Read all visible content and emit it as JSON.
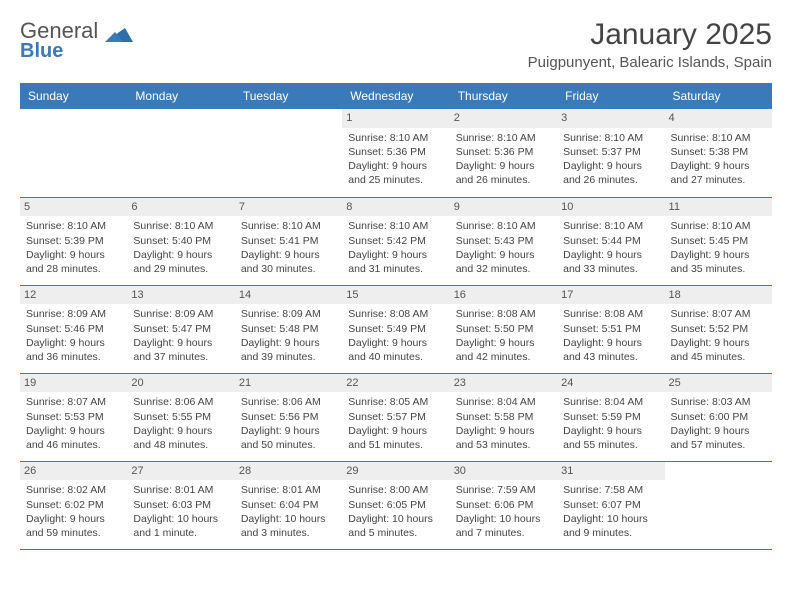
{
  "logo": {
    "text1": "General",
    "text2": "Blue",
    "triangle_color": "#2e6fa8"
  },
  "header": {
    "month_title": "January 2025",
    "location": "Puigpunyent, Balearic Islands, Spain"
  },
  "colors": {
    "header_bg": "#3a7ab8",
    "text": "#444444",
    "daynum_bg": "#eeeeee",
    "border": "#3a7ab8"
  },
  "days_of_week": [
    "Sunday",
    "Monday",
    "Tuesday",
    "Wednesday",
    "Thursday",
    "Friday",
    "Saturday"
  ],
  "weeks": [
    [
      null,
      null,
      null,
      {
        "n": "1",
        "sr": "8:10 AM",
        "ss": "5:36 PM",
        "dl": "9 hours and 25 minutes."
      },
      {
        "n": "2",
        "sr": "8:10 AM",
        "ss": "5:36 PM",
        "dl": "9 hours and 26 minutes."
      },
      {
        "n": "3",
        "sr": "8:10 AM",
        "ss": "5:37 PM",
        "dl": "9 hours and 26 minutes."
      },
      {
        "n": "4",
        "sr": "8:10 AM",
        "ss": "5:38 PM",
        "dl": "9 hours and 27 minutes."
      }
    ],
    [
      {
        "n": "5",
        "sr": "8:10 AM",
        "ss": "5:39 PM",
        "dl": "9 hours and 28 minutes."
      },
      {
        "n": "6",
        "sr": "8:10 AM",
        "ss": "5:40 PM",
        "dl": "9 hours and 29 minutes."
      },
      {
        "n": "7",
        "sr": "8:10 AM",
        "ss": "5:41 PM",
        "dl": "9 hours and 30 minutes."
      },
      {
        "n": "8",
        "sr": "8:10 AM",
        "ss": "5:42 PM",
        "dl": "9 hours and 31 minutes."
      },
      {
        "n": "9",
        "sr": "8:10 AM",
        "ss": "5:43 PM",
        "dl": "9 hours and 32 minutes."
      },
      {
        "n": "10",
        "sr": "8:10 AM",
        "ss": "5:44 PM",
        "dl": "9 hours and 33 minutes."
      },
      {
        "n": "11",
        "sr": "8:10 AM",
        "ss": "5:45 PM",
        "dl": "9 hours and 35 minutes."
      }
    ],
    [
      {
        "n": "12",
        "sr": "8:09 AM",
        "ss": "5:46 PM",
        "dl": "9 hours and 36 minutes."
      },
      {
        "n": "13",
        "sr": "8:09 AM",
        "ss": "5:47 PM",
        "dl": "9 hours and 37 minutes."
      },
      {
        "n": "14",
        "sr": "8:09 AM",
        "ss": "5:48 PM",
        "dl": "9 hours and 39 minutes."
      },
      {
        "n": "15",
        "sr": "8:08 AM",
        "ss": "5:49 PM",
        "dl": "9 hours and 40 minutes."
      },
      {
        "n": "16",
        "sr": "8:08 AM",
        "ss": "5:50 PM",
        "dl": "9 hours and 42 minutes."
      },
      {
        "n": "17",
        "sr": "8:08 AM",
        "ss": "5:51 PM",
        "dl": "9 hours and 43 minutes."
      },
      {
        "n": "18",
        "sr": "8:07 AM",
        "ss": "5:52 PM",
        "dl": "9 hours and 45 minutes."
      }
    ],
    [
      {
        "n": "19",
        "sr": "8:07 AM",
        "ss": "5:53 PM",
        "dl": "9 hours and 46 minutes."
      },
      {
        "n": "20",
        "sr": "8:06 AM",
        "ss": "5:55 PM",
        "dl": "9 hours and 48 minutes."
      },
      {
        "n": "21",
        "sr": "8:06 AM",
        "ss": "5:56 PM",
        "dl": "9 hours and 50 minutes."
      },
      {
        "n": "22",
        "sr": "8:05 AM",
        "ss": "5:57 PM",
        "dl": "9 hours and 51 minutes."
      },
      {
        "n": "23",
        "sr": "8:04 AM",
        "ss": "5:58 PM",
        "dl": "9 hours and 53 minutes."
      },
      {
        "n": "24",
        "sr": "8:04 AM",
        "ss": "5:59 PM",
        "dl": "9 hours and 55 minutes."
      },
      {
        "n": "25",
        "sr": "8:03 AM",
        "ss": "6:00 PM",
        "dl": "9 hours and 57 minutes."
      }
    ],
    [
      {
        "n": "26",
        "sr": "8:02 AM",
        "ss": "6:02 PM",
        "dl": "9 hours and 59 minutes."
      },
      {
        "n": "27",
        "sr": "8:01 AM",
        "ss": "6:03 PM",
        "dl": "10 hours and 1 minute."
      },
      {
        "n": "28",
        "sr": "8:01 AM",
        "ss": "6:04 PM",
        "dl": "10 hours and 3 minutes."
      },
      {
        "n": "29",
        "sr": "8:00 AM",
        "ss": "6:05 PM",
        "dl": "10 hours and 5 minutes."
      },
      {
        "n": "30",
        "sr": "7:59 AM",
        "ss": "6:06 PM",
        "dl": "10 hours and 7 minutes."
      },
      {
        "n": "31",
        "sr": "7:58 AM",
        "ss": "6:07 PM",
        "dl": "10 hours and 9 minutes."
      },
      null
    ]
  ],
  "labels": {
    "sunrise": "Sunrise:",
    "sunset": "Sunset:",
    "daylight": "Daylight:"
  }
}
